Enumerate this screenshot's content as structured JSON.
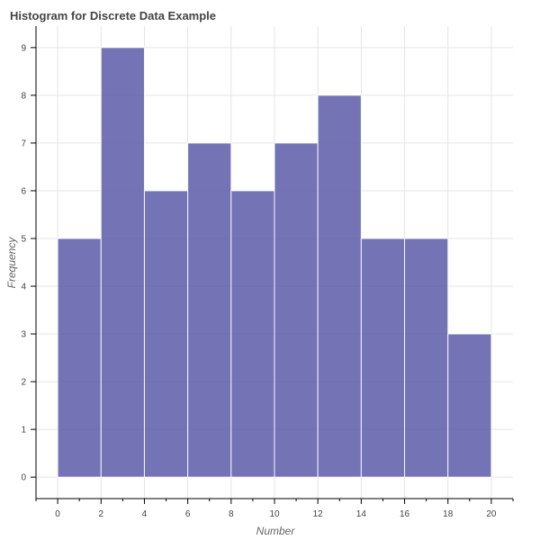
{
  "chart_data": {
    "type": "bar",
    "title": "Histogram for Discrete Data Example",
    "xlabel": "Number",
    "ylabel": "Frequency",
    "bins": [
      {
        "start": 0,
        "end": 2,
        "value": 5
      },
      {
        "start": 2,
        "end": 4,
        "value": 9
      },
      {
        "start": 4,
        "end": 6,
        "value": 6
      },
      {
        "start": 6,
        "end": 8,
        "value": 7
      },
      {
        "start": 8,
        "end": 10,
        "value": 6
      },
      {
        "start": 10,
        "end": 12,
        "value": 7
      },
      {
        "start": 12,
        "end": 14,
        "value": 8
      },
      {
        "start": 14,
        "end": 16,
        "value": 5
      },
      {
        "start": 16,
        "end": 18,
        "value": 5
      },
      {
        "start": 18,
        "end": 20,
        "value": 3
      }
    ],
    "xticks": [
      0,
      2,
      4,
      6,
      8,
      10,
      12,
      14,
      16,
      18,
      20
    ],
    "yticks": [
      0,
      1,
      2,
      3,
      4,
      5,
      6,
      7,
      8,
      9
    ],
    "xlim": [
      -1,
      21
    ],
    "ylim": [
      -0.45,
      9.45
    ],
    "grid": true,
    "bar_color": "#5b5aa9",
    "bar_opacity": 0.85
  }
}
